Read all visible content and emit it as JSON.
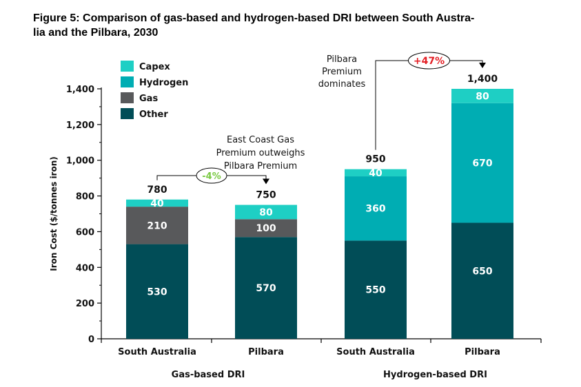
{
  "title": "Figure 5: Comparison of gas-based and hydrogen-based DRI between South Australia and the Pilbara, 2030",
  "title_lines": [
    "Figure 5: Comparison of gas-based and hydrogen-based DRI between South Austra-",
    "lia and the Pilbara, 2030"
  ],
  "chart_data": {
    "type": "bar",
    "stacked": true,
    "categories": [
      "South Australia",
      "Pilbara",
      "South Australia",
      "Pilbara"
    ],
    "groups": [
      {
        "label": "Gas-based DRI",
        "categories": [
          "South Australia",
          "Pilbara"
        ]
      },
      {
        "label": "Hydrogen-based DRI",
        "categories": [
          "South Australia",
          "Pilbara"
        ]
      }
    ],
    "series": [
      {
        "name": "Other",
        "values": [
          530,
          570,
          550,
          650
        ],
        "color": "#014d57"
      },
      {
        "name": "Gas",
        "values": [
          210,
          100,
          0,
          0
        ],
        "color": "#58595b"
      },
      {
        "name": "Hydrogen",
        "values": [
          0,
          0,
          360,
          670
        ],
        "color": "#00adb3"
      },
      {
        "name": "Capex",
        "values": [
          40,
          80,
          40,
          80
        ],
        "color": "#1ecfc4"
      }
    ],
    "legend_order": [
      "Capex",
      "Hydrogen",
      "Gas",
      "Other"
    ],
    "legend_position": "top-left",
    "totals": [
      "780",
      "750",
      "950",
      "1,400"
    ],
    "ylabel": "Iron Cost ($/tonnes iron)",
    "xlabel": "",
    "ylim": [
      0,
      1400
    ],
    "yticks": [
      0,
      200,
      400,
      600,
      800,
      1000,
      1200,
      1400
    ],
    "ytick_labels": [
      "0",
      "200",
      "400",
      "600",
      "800",
      "1,000",
      "1,200",
      "1,400"
    ],
    "grid": false,
    "comparisons": [
      {
        "from": 0,
        "to": 1,
        "label": "-4%",
        "color": "#7ac943"
      },
      {
        "from": 2,
        "to": 3,
        "label": "+47%",
        "color": "#e31e24"
      }
    ],
    "annotations": [
      {
        "lines": [
          "East Coast Gas",
          "Premium outweighs",
          "Pilbara Premium"
        ]
      },
      {
        "lines": [
          "Pilbara",
          "Premium",
          "dominates"
        ]
      }
    ]
  }
}
